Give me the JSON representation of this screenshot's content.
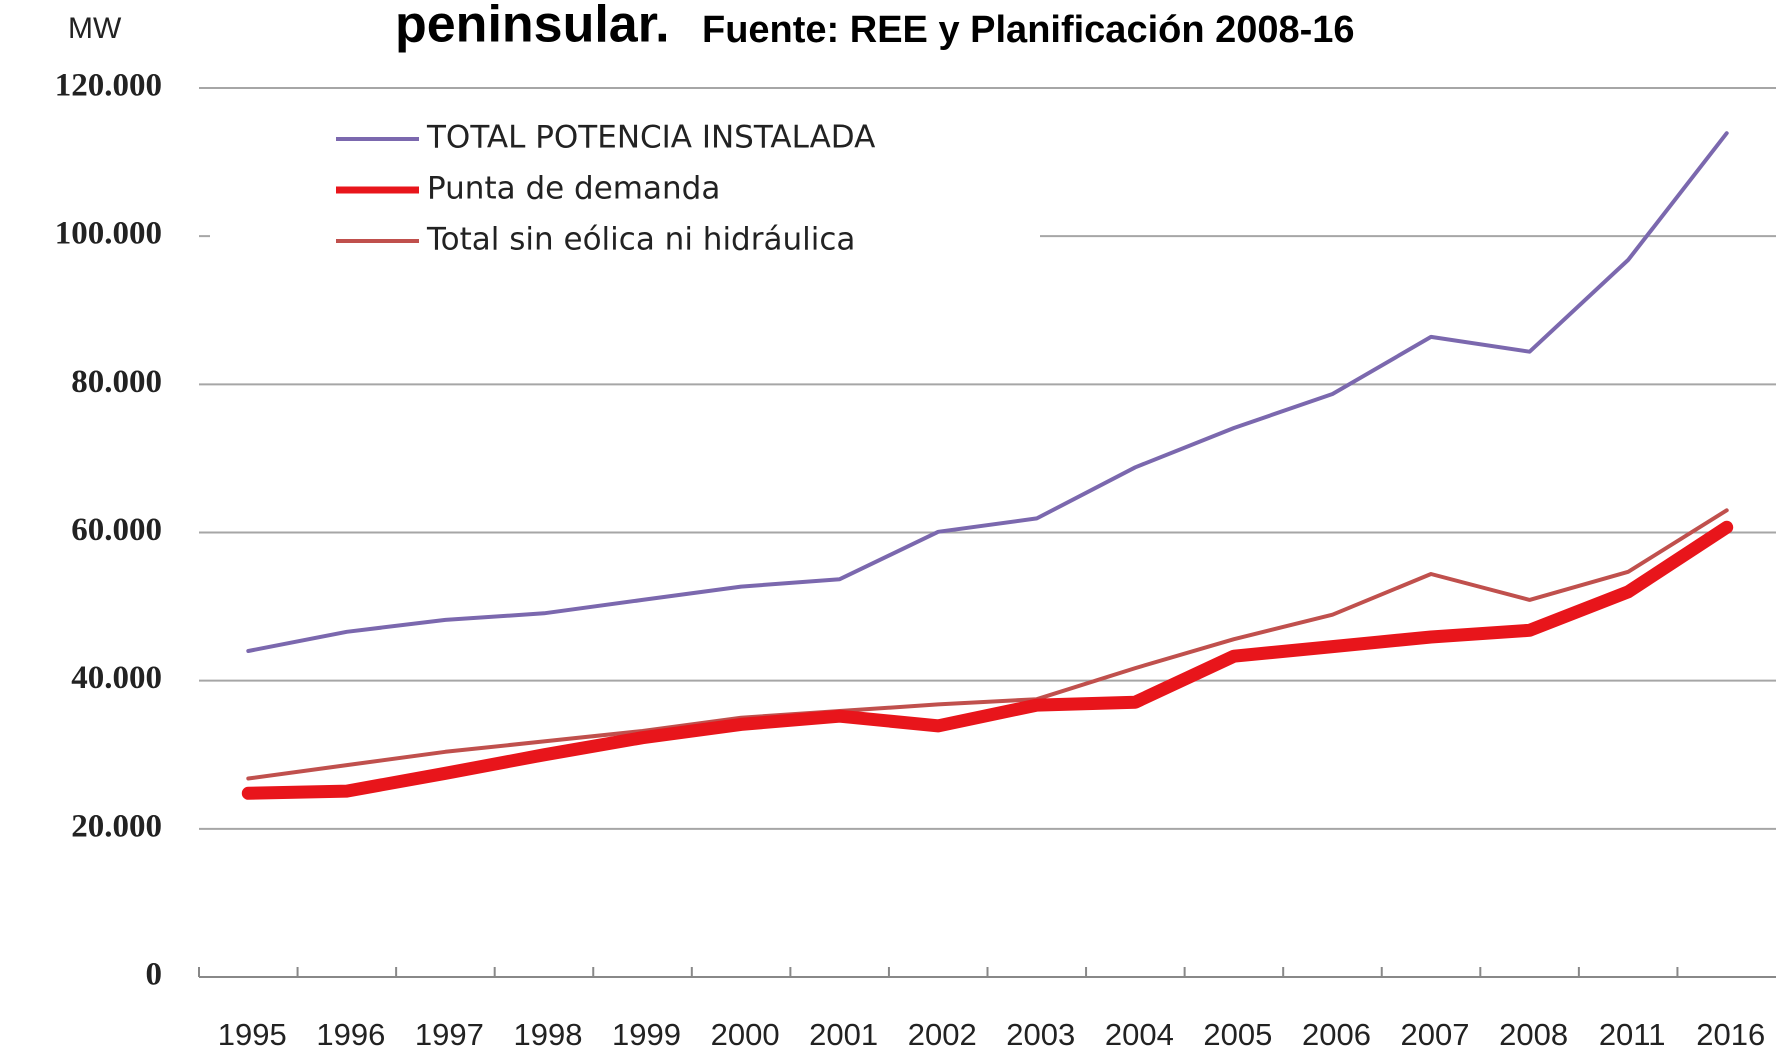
{
  "chart_data": {
    "type": "line",
    "title": "peninsular.",
    "subtitle": "Fuente: REE y Planificación 2008-16",
    "y_label": "MW",
    "categories": [
      "1995",
      "1996",
      "1997",
      "1998",
      "1999",
      "2000",
      "2001",
      "2002",
      "2003",
      "2004",
      "2005",
      "2006",
      "2007",
      "2008",
      "2011",
      "2016"
    ],
    "series": [
      {
        "name": "TOTAL POTENCIA INSTALADA",
        "color": "#7b68ae",
        "width": 4,
        "values": [
          44000,
          46600,
          48200,
          49100,
          50900,
          52700,
          53700,
          60100,
          61900,
          68800,
          74100,
          78700,
          86400,
          84400,
          96800,
          113900
        ]
      },
      {
        "name": "Punta de demanda",
        "color": "#e8151b",
        "width": 13,
        "values": [
          24800,
          25100,
          27500,
          30000,
          32300,
          34100,
          35200,
          33900,
          36700,
          37100,
          43300,
          44600,
          45900,
          46800,
          52000,
          60700
        ]
      },
      {
        "name": "Total sin eólica ni hidráulica",
        "color": "#c0504d",
        "width": 4,
        "values": [
          26800,
          28600,
          30400,
          31800,
          33200,
          35000,
          35900,
          36800,
          37500,
          41700,
          45600,
          48900,
          54400,
          50900,
          54700,
          63000
        ]
      }
    ],
    "ylim": [
      0,
      120000
    ],
    "yticks": [
      0,
      {
        "value": 20000,
        "label": "20.000"
      },
      {
        "value": 40000,
        "label": "40.000"
      },
      {
        "value": 60000,
        "label": "60.000"
      },
      {
        "value": 80000,
        "label": "80.000"
      },
      {
        "value": 100000,
        "label": "100.000"
      },
      {
        "value": 120000,
        "label": "120.000"
      }
    ],
    "grid": true
  }
}
